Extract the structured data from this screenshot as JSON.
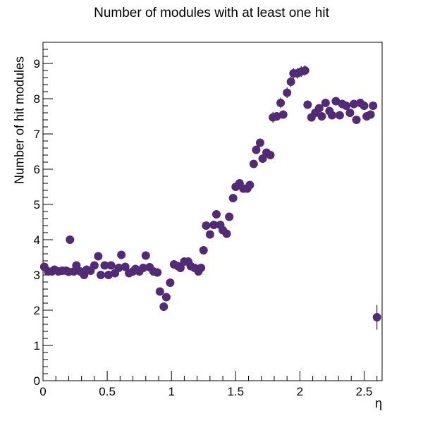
{
  "chart_data": {
    "type": "scatter",
    "title": "Number of modules with at least one hit",
    "xlabel": "η",
    "ylabel": "Number of hit modules",
    "xlim": [
      0,
      2.64
    ],
    "ylim": [
      0,
      9.6
    ],
    "xticks": [
      0,
      0.5,
      1,
      1.5,
      2,
      2.5
    ],
    "xtick_labels": [
      "0",
      "0.5",
      "1",
      "1.5",
      "2",
      "2.5"
    ],
    "yticks": [
      0,
      1,
      2,
      3,
      4,
      5,
      6,
      7,
      8,
      9
    ],
    "ytick_labels": [
      "0",
      "1",
      "2",
      "3",
      "4",
      "5",
      "6",
      "7",
      "8",
      "9"
    ],
    "grid": false,
    "legend": false,
    "marker_color": "#522a75",
    "series": [
      {
        "points": [
          [
            0.01,
            3.23
          ],
          [
            0.04,
            3.1
          ],
          [
            0.07,
            3.1
          ],
          [
            0.09,
            3.15
          ],
          [
            0.12,
            3.1
          ],
          [
            0.15,
            3.12
          ],
          [
            0.18,
            3.12
          ],
          [
            0.2,
            3.09
          ],
          [
            0.21,
            4.0
          ],
          [
            0.24,
            3.1
          ],
          [
            0.26,
            3.27
          ],
          [
            0.29,
            3.1
          ],
          [
            0.32,
            3.0
          ],
          [
            0.34,
            3.15
          ],
          [
            0.37,
            3.12
          ],
          [
            0.4,
            3.27
          ],
          [
            0.43,
            3.53
          ],
          [
            0.45,
            3.0
          ],
          [
            0.48,
            3.27
          ],
          [
            0.51,
            3.0
          ],
          [
            0.53,
            3.27
          ],
          [
            0.56,
            3.05
          ],
          [
            0.59,
            3.2
          ],
          [
            0.61,
            3.57
          ],
          [
            0.64,
            3.23
          ],
          [
            0.67,
            3.05
          ],
          [
            0.7,
            3.1
          ],
          [
            0.72,
            3.17
          ],
          [
            0.75,
            3.1
          ],
          [
            0.78,
            3.2
          ],
          [
            0.8,
            3.55
          ],
          [
            0.83,
            3.22
          ],
          [
            0.86,
            3.1
          ],
          [
            0.89,
            3.07
          ],
          [
            0.91,
            2.53
          ],
          [
            0.94,
            2.1
          ],
          [
            0.96,
            2.37
          ],
          [
            0.99,
            2.78
          ],
          [
            1.02,
            3.3
          ],
          [
            1.05,
            3.25
          ],
          [
            1.07,
            3.2
          ],
          [
            1.1,
            3.38
          ],
          [
            1.13,
            3.38
          ],
          [
            1.15,
            3.25
          ],
          [
            1.18,
            3.2
          ],
          [
            1.21,
            3.1
          ],
          [
            1.23,
            3.2
          ],
          [
            1.25,
            3.7
          ],
          [
            1.27,
            4.4
          ],
          [
            1.3,
            4.15
          ],
          [
            1.33,
            4.42
          ],
          [
            1.35,
            4.72
          ],
          [
            1.38,
            4.42
          ],
          [
            1.4,
            4.27
          ],
          [
            1.43,
            4.17
          ],
          [
            1.45,
            4.65
          ],
          [
            1.48,
            5.18
          ],
          [
            1.5,
            5.5
          ],
          [
            1.53,
            5.6
          ],
          [
            1.56,
            5.45
          ],
          [
            1.59,
            5.45
          ],
          [
            1.61,
            5.55
          ],
          [
            1.64,
            6.15
          ],
          [
            1.66,
            6.55
          ],
          [
            1.69,
            6.75
          ],
          [
            1.71,
            6.3
          ],
          [
            1.74,
            6.47
          ],
          [
            1.77,
            6.4
          ],
          [
            1.79,
            7.47
          ],
          [
            1.82,
            7.5
          ],
          [
            1.85,
            7.88
          ],
          [
            1.87,
            7.55
          ],
          [
            1.9,
            8.17
          ],
          [
            1.93,
            8.48
          ],
          [
            1.95,
            8.72
          ],
          [
            1.98,
            8.72
          ],
          [
            2.01,
            8.77
          ],
          [
            2.04,
            8.8
          ],
          [
            2.06,
            7.83
          ],
          [
            2.09,
            7.47
          ],
          [
            2.12,
            7.6
          ],
          [
            2.15,
            7.73
          ],
          [
            2.17,
            7.5
          ],
          [
            2.2,
            7.88
          ],
          [
            2.23,
            7.65
          ],
          [
            2.25,
            7.53
          ],
          [
            2.28,
            7.93
          ],
          [
            2.31,
            7.53
          ],
          [
            2.33,
            7.85
          ],
          [
            2.36,
            7.8
          ],
          [
            2.39,
            7.6
          ],
          [
            2.42,
            7.85
          ],
          [
            2.44,
            7.4
          ],
          [
            2.47,
            7.88
          ],
          [
            2.5,
            7.8
          ],
          [
            2.52,
            7.5
          ],
          [
            2.55,
            7.55
          ],
          [
            2.57,
            7.8
          ],
          [
            2.6,
            1.8
          ]
        ],
        "errors": [
          0.08,
          0.08,
          0.08,
          0.08,
          0.08,
          0.08,
          0.08,
          0.08,
          0.1,
          0.08,
          0.08,
          0.08,
          0.08,
          0.08,
          0.08,
          0.08,
          0.1,
          0.08,
          0.08,
          0.08,
          0.08,
          0.08,
          0.08,
          0.1,
          0.08,
          0.08,
          0.08,
          0.08,
          0.08,
          0.08,
          0.1,
          0.08,
          0.08,
          0.08,
          0.1,
          0.1,
          0.1,
          0.1,
          0.08,
          0.08,
          0.08,
          0.08,
          0.08,
          0.08,
          0.08,
          0.08,
          0.08,
          0.1,
          0.1,
          0.1,
          0.1,
          0.1,
          0.1,
          0.1,
          0.1,
          0.1,
          0.1,
          0.1,
          0.12,
          0.1,
          0.1,
          0.1,
          0.1,
          0.12,
          0.12,
          0.1,
          0.12,
          0.12,
          0.15,
          0.12,
          0.15,
          0.12,
          0.15,
          0.15,
          0.15,
          0.15,
          0.15,
          0.15,
          0.12,
          0.12,
          0.12,
          0.12,
          0.12,
          0.12,
          0.12,
          0.12,
          0.12,
          0.12,
          0.12,
          0.12,
          0.12,
          0.12,
          0.12,
          0.12,
          0.12,
          0.12,
          0.12,
          0.12,
          0.35
        ]
      }
    ]
  }
}
